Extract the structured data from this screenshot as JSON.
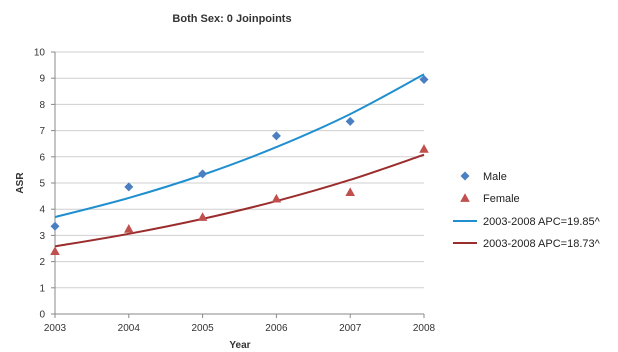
{
  "chart_data": {
    "type": "scatter",
    "title": "Both Sex: 0 Joinpoints",
    "xlabel": "Year",
    "ylabel": "ASR",
    "xlim": [
      2003,
      2008
    ],
    "ylim": [
      0,
      10
    ],
    "x_ticks": [
      "2003",
      "2004",
      "2005",
      "2006",
      "2007",
      "2008"
    ],
    "y_ticks": [
      "0",
      "1",
      "2",
      "3",
      "4",
      "5",
      "6",
      "7",
      "8",
      "9",
      "10"
    ],
    "grid": "horizontal",
    "legend_position": "right",
    "series": [
      {
        "name": "Male",
        "kind": "points",
        "marker": "diamond",
        "color": "#4a7fc1",
        "x": [
          2003,
          2004,
          2005,
          2006,
          2007,
          2008
        ],
        "y": [
          3.35,
          4.85,
          5.35,
          6.8,
          7.35,
          8.95
        ]
      },
      {
        "name": "Female",
        "kind": "points",
        "marker": "triangle",
        "color": "#c0504d",
        "x": [
          2003,
          2004,
          2005,
          2006,
          2007,
          2008
        ],
        "y": [
          2.4,
          3.25,
          3.7,
          4.4,
          4.65,
          6.3
        ]
      },
      {
        "name": "2003-2008 APC=19.85^",
        "kind": "line",
        "color": "#1f8fd0",
        "x": [
          2003,
          2004,
          2005,
          2006,
          2007,
          2008
        ],
        "y": [
          3.7,
          4.43,
          5.31,
          6.37,
          7.63,
          9.15
        ]
      },
      {
        "name": "2003-2008 APC=18.73^",
        "kind": "line",
        "color": "#9b2d2d",
        "x": [
          2003,
          2004,
          2005,
          2006,
          2007,
          2008
        ],
        "y": [
          2.58,
          3.06,
          3.63,
          4.31,
          5.12,
          6.08
        ]
      }
    ]
  }
}
